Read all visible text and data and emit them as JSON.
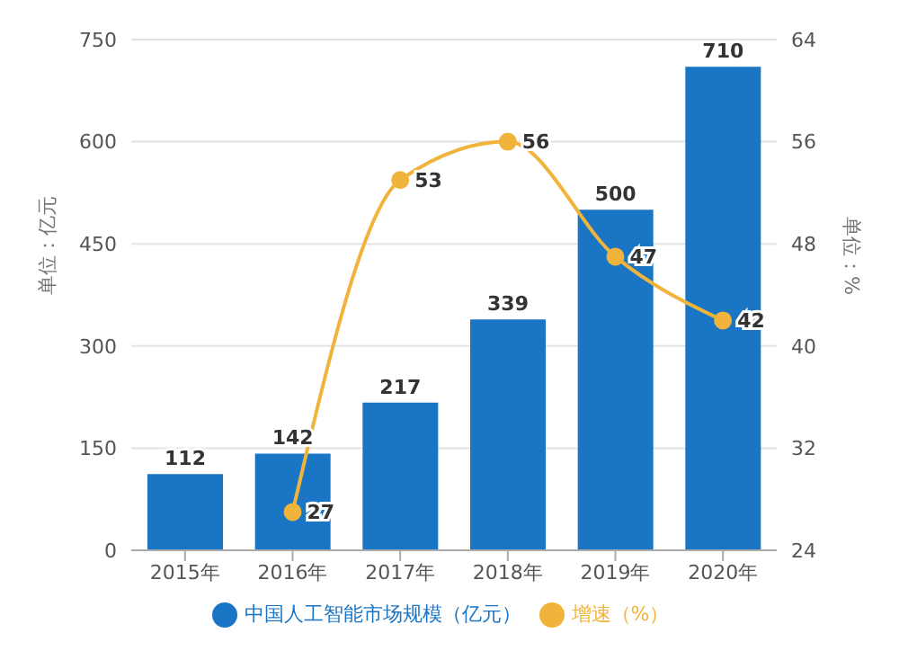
{
  "chart_data": {
    "type": "bar",
    "categories": [
      "2015年",
      "2016年",
      "2017年",
      "2018年",
      "2019年",
      "2020年"
    ],
    "series": [
      {
        "name": "中国人工智能市场规模（亿元）",
        "color": "#1a75c4",
        "values": [
          112,
          142,
          217,
          339,
          500,
          710
        ]
      },
      {
        "name": "增速（%）",
        "type": "line",
        "axis": "y2",
        "color": "#f0b43c",
        "values": [
          null,
          27,
          53,
          56,
          47,
          42
        ]
      }
    ],
    "ylabel": "单位：亿元",
    "y2label": "单位：%",
    "ylim": [
      0,
      750
    ],
    "yticks": [
      0,
      150,
      300,
      450,
      600,
      750
    ],
    "y2lim": [
      24,
      64
    ],
    "y2ticks": [
      24,
      32,
      40,
      48,
      56,
      64
    ],
    "grid": "y",
    "legend": "bottom",
    "data_labels": true,
    "marker": "circle"
  }
}
